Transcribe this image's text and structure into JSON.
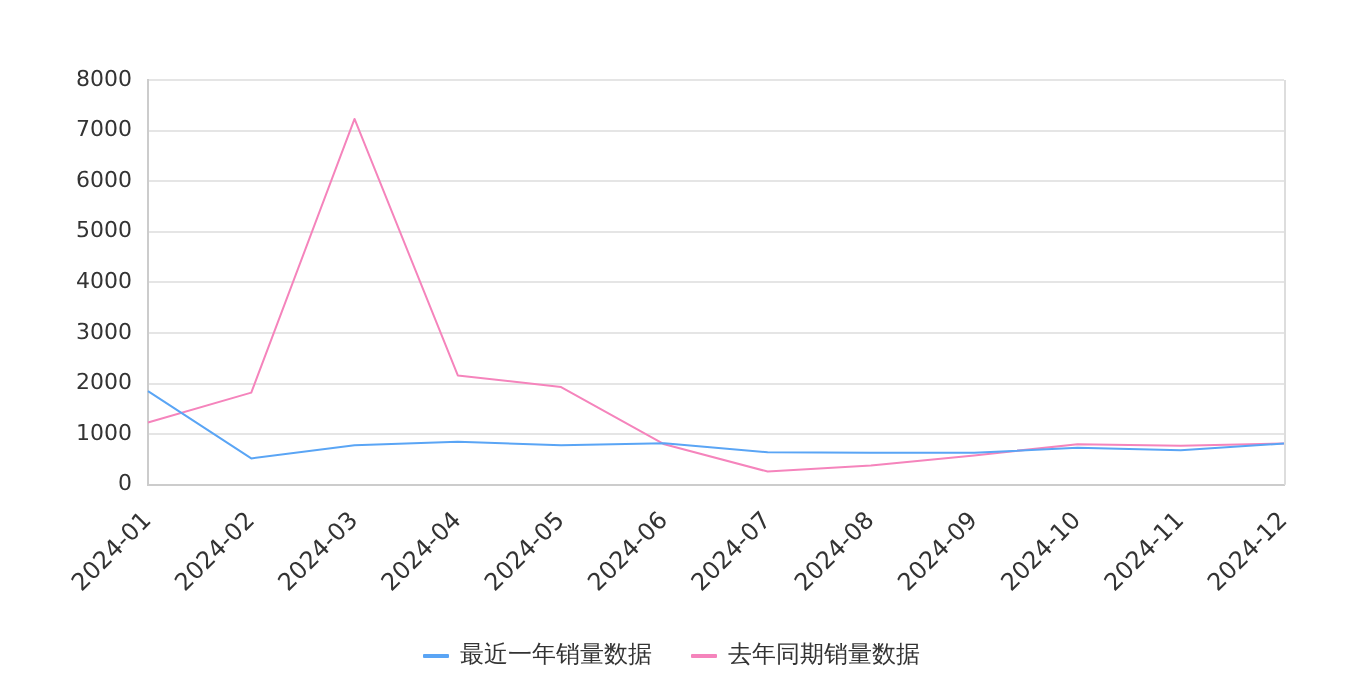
{
  "chart_data": {
    "type": "line",
    "categories": [
      "2024-01",
      "2024-02",
      "2024-03",
      "2024-04",
      "2024-05",
      "2024-06",
      "2024-07",
      "2024-08",
      "2024-09",
      "2024-10",
      "2024-11",
      "2024-12"
    ],
    "series": [
      {
        "name": "最近一年销量数据",
        "color": "#5aa5f5",
        "values": [
          1850,
          520,
          780,
          850,
          780,
          820,
          640,
          630,
          630,
          730,
          680,
          815
        ]
      },
      {
        "name": "去年同期销量数据",
        "color": "#f584bc",
        "values": [
          1230,
          1820,
          7230,
          2160,
          1930,
          800,
          260,
          380,
          580,
          800,
          770,
          815
        ]
      }
    ],
    "ylim": [
      0,
      8000
    ],
    "yticks": [
      0,
      1000,
      2000,
      3000,
      4000,
      5000,
      6000,
      7000,
      8000
    ],
    "grid": "y",
    "legend": "bottom",
    "marker": "none",
    "line_style": "solid"
  }
}
